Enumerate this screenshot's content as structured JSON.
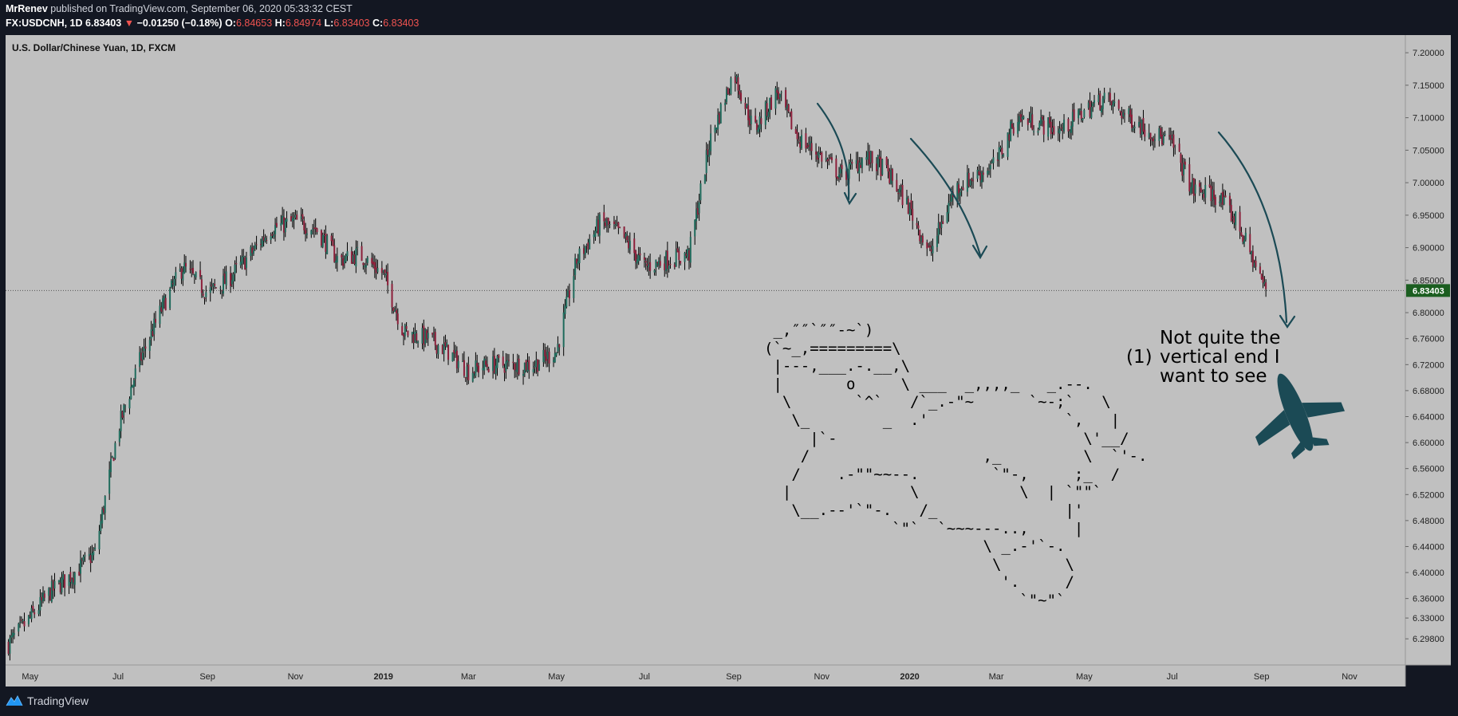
{
  "header": {
    "author": "MrRenev",
    "published": "published on TradingView.com, September 06, 2020 05:33:32 CEST",
    "symbol": "FX:USDCNH, 1D",
    "last": "6.83403",
    "change": "−0.01250 (−0.18%)",
    "o_label": "O:",
    "o_value": "6.84653",
    "h_label": "H:",
    "h_value": "6.84974",
    "l_label": "L:",
    "l_value": "6.83403",
    "c_label": "C:",
    "c_value": "6.83403"
  },
  "footer": {
    "brand": "TradingView"
  },
  "colors": {
    "background": "#c0c0c0",
    "frame": "#131722",
    "candle_up": "#1f6b5c",
    "candle_down": "#8c1f3a",
    "wick": "#000000",
    "annotation": "#1b4a55",
    "price_label": "#1b5e20"
  },
  "chart_data": {
    "type": "candlestick",
    "title": "U.S. Dollar/Chinese Yuan, 1D, FXCM",
    "ylim": [
      6.27,
      7.21
    ],
    "y_ticks": [
      "7.20000",
      "7.15000",
      "7.10000",
      "7.05000",
      "7.00000",
      "6.95000",
      "6.90000",
      "6.85000",
      "6.80000",
      "6.76000",
      "6.72000",
      "6.68000",
      "6.64000",
      "6.60000",
      "6.56000",
      "6.52000",
      "6.48000",
      "6.44000",
      "6.40000",
      "6.36000",
      "6.33000",
      "6.29800"
    ],
    "x_ticks": [
      "May",
      "Jul",
      "Sep",
      "Nov",
      "2019",
      "Mar",
      "May",
      "Jul",
      "Sep",
      "Nov",
      "2020",
      "Mar",
      "May",
      "Jul",
      "Sep",
      "Nov"
    ],
    "last_price": "6.83403",
    "approx_closes": [
      [
        "2018-04-16",
        6.29
      ],
      [
        "2018-05-01",
        6.33
      ],
      [
        "2018-05-15",
        6.37
      ],
      [
        "2018-06-01",
        6.4
      ],
      [
        "2018-06-15",
        6.43
      ],
      [
        "2018-07-01",
        6.62
      ],
      [
        "2018-07-15",
        6.72
      ],
      [
        "2018-08-01",
        6.81
      ],
      [
        "2018-08-15",
        6.87
      ],
      [
        "2018-09-01",
        6.83
      ],
      [
        "2018-09-15",
        6.85
      ],
      [
        "2018-10-01",
        6.89
      ],
      [
        "2018-10-15",
        6.93
      ],
      [
        "2018-11-01",
        6.94
      ],
      [
        "2018-11-15",
        6.93
      ],
      [
        "2018-12-01",
        6.88
      ],
      [
        "2018-12-15",
        6.89
      ],
      [
        "2019-01-01",
        6.86
      ],
      [
        "2019-01-15",
        6.77
      ],
      [
        "2019-02-01",
        6.76
      ],
      [
        "2019-02-15",
        6.74
      ],
      [
        "2019-03-01",
        6.71
      ],
      [
        "2019-03-15",
        6.72
      ],
      [
        "2019-04-01",
        6.72
      ],
      [
        "2019-04-15",
        6.72
      ],
      [
        "2019-05-01",
        6.74
      ],
      [
        "2019-05-15",
        6.88
      ],
      [
        "2019-06-01",
        6.94
      ],
      [
        "2019-06-15",
        6.92
      ],
      [
        "2019-07-01",
        6.87
      ],
      [
        "2019-07-15",
        6.88
      ],
      [
        "2019-08-01",
        6.89
      ],
      [
        "2019-08-15",
        7.06
      ],
      [
        "2019-09-01",
        7.17
      ],
      [
        "2019-09-15",
        7.08
      ],
      [
        "2019-10-01",
        7.14
      ],
      [
        "2019-10-15",
        7.07
      ],
      [
        "2019-11-01",
        7.04
      ],
      [
        "2019-11-15",
        7.01
      ],
      [
        "2019-12-01",
        7.04
      ],
      [
        "2019-12-15",
        7.02
      ],
      [
        "2020-01-01",
        6.96
      ],
      [
        "2020-01-15",
        6.89
      ],
      [
        "2020-02-01",
        6.99
      ],
      [
        "2020-02-15",
        7.01
      ],
      [
        "2020-03-01",
        7.03
      ],
      [
        "2020-03-15",
        7.1
      ],
      [
        "2020-04-01",
        7.09
      ],
      [
        "2020-04-15",
        7.08
      ],
      [
        "2020-05-01",
        7.11
      ],
      [
        "2020-05-15",
        7.13
      ],
      [
        "2020-06-01",
        7.1
      ],
      [
        "2020-06-15",
        7.08
      ],
      [
        "2020-07-01",
        7.06
      ],
      [
        "2020-07-15",
        6.99
      ],
      [
        "2020-08-01",
        6.98
      ],
      [
        "2020-08-15",
        6.94
      ],
      [
        "2020-09-01",
        6.85
      ],
      [
        "2020-09-04",
        6.834
      ]
    ]
  },
  "annotations": {
    "text": [
      "Not quite the",
      "vertical end I",
      "want to see"
    ],
    "number": "(1)",
    "ascii_art": " _,″″`″″-~`)\n(`~_,=========\\\n |---,___.-.__,\\\n |       o     \\ ___  _,,,,_   _.--.\n  \\       `^`   /`_.-\"~      `~-;`   \\\n   \\_        _  .'               `,   |\n     |`-                           \\'__/\n    /                   ,_         \\  `'-.\n   /    .-\"\"~~--.        `\"-,     ;_  /\n  |             \\           \\  | `\"\"`\n   \\__.--'`\"-.   /_              |'\n              `\"`  `~~~---..,     |\n                        \\ _.-'`-.\n                         \\       \\\n                          '.     /\n                            `\"~\"`"
  }
}
